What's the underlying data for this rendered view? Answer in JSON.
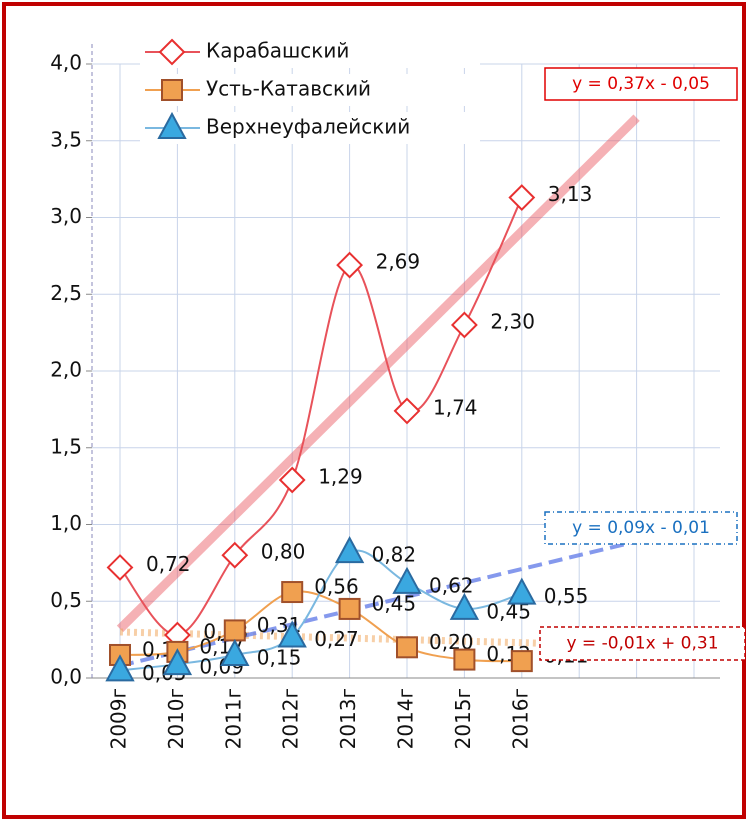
{
  "chart_data": {
    "type": "line",
    "categories": [
      "2009г",
      "2010г",
      "2011г",
      "2012г",
      "2013г",
      "2014г",
      "2015г",
      "2016г"
    ],
    "ylim": [
      0,
      4
    ],
    "yticks": [
      {
        "value": 0,
        "label": "0,0"
      },
      {
        "value": 0.5,
        "label": "0,5"
      },
      {
        "value": 1,
        "label": "1,0"
      },
      {
        "value": 1.5,
        "label": "1,5"
      },
      {
        "value": 2,
        "label": "2,0"
      },
      {
        "value": 2.5,
        "label": "2,5"
      },
      {
        "value": 3,
        "label": "3,0"
      },
      {
        "value": 3.5,
        "label": "3,5"
      },
      {
        "value": 4,
        "label": "4,0"
      }
    ],
    "grid": true,
    "series": [
      {
        "name": "Карабашский",
        "color": "#e8525a",
        "marker": "diamond",
        "values": [
          0.72,
          0.28,
          0.8,
          1.29,
          2.69,
          1.74,
          2.3,
          3.13
        ],
        "value_labels": [
          "0,72",
          "0,28",
          "0,80",
          "1,29",
          "2,69",
          "1,74",
          "2,30",
          "3,13"
        ],
        "trendline": {
          "equation": "y = 0,37x - 0,05",
          "slope": 0.37,
          "intercept": -0.05,
          "forward": 2
        }
      },
      {
        "name": "Усть-Катавский",
        "color": "#f0a050",
        "marker": "square",
        "values": [
          0.15,
          0.17,
          0.31,
          0.56,
          0.45,
          0.2,
          0.12,
          0.11
        ],
        "value_labels": [
          "0,15",
          "0,17",
          "0,31",
          "0,56",
          "0,45",
          "0,20",
          "0,12",
          "0,11"
        ],
        "trendline": {
          "equation": "y = -0,01x + 0,31",
          "slope": -0.01,
          "intercept": 0.31,
          "forward": 2
        }
      },
      {
        "name": "Верхнеуфалейский",
        "color": "#7ab8e0",
        "marker": "triangle",
        "values": [
          0.05,
          0.09,
          0.15,
          0.27,
          0.82,
          0.62,
          0.45,
          0.55
        ],
        "value_labels": [
          "0,05",
          "0,09",
          "0,15",
          "0,27",
          "0,82",
          "0,62",
          "0,45",
          "0,55"
        ],
        "trendline": {
          "equation": "y = 0,09x - 0,01",
          "slope": 0.09,
          "intercept": -0.01,
          "forward": 2
        }
      }
    ]
  }
}
